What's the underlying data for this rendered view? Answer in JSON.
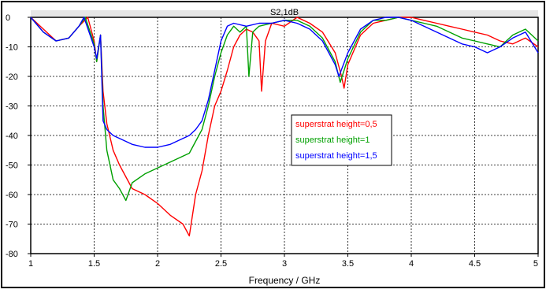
{
  "chart_data": {
    "type": "line",
    "title": "S2,1dB",
    "xlabel": "Frequency / GHz",
    "ylabel": "",
    "xlim": [
      1,
      5
    ],
    "ylim": [
      -80,
      0
    ],
    "grid": true,
    "legend_placement": "center-right",
    "x_ticks": [
      "1",
      "1.5",
      "2",
      "2.5",
      "3",
      "3.5",
      "4",
      "4.5",
      "5"
    ],
    "y_ticks": [
      "0",
      "-10",
      "-20",
      "-30",
      "-40",
      "-50",
      "-60",
      "-70",
      "-80"
    ],
    "series": [
      {
        "name": "superstrat height=0,5",
        "color": "#ff0000",
        "x": [
          1.0,
          1.1,
          1.2,
          1.3,
          1.38,
          1.45,
          1.5,
          1.52,
          1.55,
          1.57,
          1.6,
          1.65,
          1.7,
          1.8,
          1.9,
          2.0,
          2.1,
          2.2,
          2.25,
          2.3,
          2.35,
          2.4,
          2.45,
          2.5,
          2.55,
          2.6,
          2.65,
          2.7,
          2.75,
          2.8,
          2.82,
          2.85,
          2.9,
          3.0,
          3.1,
          3.2,
          3.3,
          3.4,
          3.45,
          3.47,
          3.5,
          3.6,
          3.7,
          3.8,
          3.9,
          4.0,
          4.1,
          4.2,
          4.3,
          4.4,
          4.5,
          4.6,
          4.7,
          4.8,
          4.9,
          5.0
        ],
        "y": [
          0,
          -4,
          -8,
          -7,
          -3,
          0,
          -8,
          -15,
          -6,
          -25,
          -36,
          -45,
          -50,
          -58,
          -60,
          -63,
          -67,
          -70,
          -74,
          -60,
          -52,
          -40,
          -30,
          -25,
          -18,
          -10,
          -6,
          -4,
          -5,
          -8,
          -25,
          -8,
          -2,
          -3,
          0,
          -2,
          -5,
          -12,
          -20,
          -24,
          -16,
          -6,
          -2,
          -1,
          0,
          0,
          -1,
          -2,
          -3,
          -4,
          -5,
          -6,
          -8,
          -9,
          -7,
          -10
        ]
      },
      {
        "name": "superstrat height=1",
        "color": "#00a000",
        "x": [
          1.0,
          1.1,
          1.2,
          1.3,
          1.38,
          1.43,
          1.5,
          1.52,
          1.55,
          1.57,
          1.6,
          1.65,
          1.7,
          1.75,
          1.8,
          1.9,
          2.0,
          2.1,
          2.2,
          2.25,
          2.3,
          2.35,
          2.4,
          2.45,
          2.5,
          2.55,
          2.6,
          2.65,
          2.7,
          2.72,
          2.75,
          2.8,
          2.9,
          3.0,
          3.1,
          3.2,
          3.3,
          3.4,
          3.44,
          3.5,
          3.6,
          3.7,
          3.8,
          3.9,
          4.0,
          4.1,
          4.2,
          4.3,
          4.4,
          4.5,
          4.6,
          4.7,
          4.8,
          4.9,
          5.0
        ],
        "y": [
          0,
          -5,
          -8,
          -7,
          -3,
          0,
          -9,
          -15,
          -6,
          -30,
          -45,
          -55,
          -58,
          -62,
          -56,
          -53,
          -51,
          -49,
          -47,
          -46,
          -42,
          -38,
          -30,
          -20,
          -12,
          -6,
          -3,
          -5,
          -3,
          -20,
          -5,
          -3,
          -2,
          -1,
          -1,
          -3,
          -7,
          -15,
          -22,
          -14,
          -5,
          -1,
          -1,
          0,
          -1,
          -2,
          -3,
          -5,
          -7,
          -8,
          -9,
          -10,
          -6,
          -4,
          -8
        ]
      },
      {
        "name": "superstrat height=1,5",
        "color": "#0000ff",
        "x": [
          1.0,
          1.1,
          1.2,
          1.3,
          1.38,
          1.42,
          1.5,
          1.52,
          1.55,
          1.57,
          1.6,
          1.65,
          1.7,
          1.8,
          1.9,
          2.0,
          2.1,
          2.2,
          2.25,
          2.3,
          2.35,
          2.4,
          2.45,
          2.5,
          2.55,
          2.6,
          2.7,
          2.8,
          2.9,
          3.0,
          3.1,
          3.2,
          3.3,
          3.4,
          3.43,
          3.5,
          3.6,
          3.7,
          3.8,
          3.9,
          4.0,
          4.1,
          4.2,
          4.3,
          4.4,
          4.5,
          4.6,
          4.7,
          4.8,
          4.9,
          5.0
        ],
        "y": [
          0,
          -5,
          -8,
          -7,
          -3,
          0,
          -10,
          -14,
          -6,
          -35,
          -38,
          -40,
          -41,
          -43,
          -44,
          -44,
          -43,
          -41,
          -40,
          -38,
          -35,
          -28,
          -18,
          -8,
          -3,
          -2,
          -3,
          -2,
          -2,
          -1,
          -2,
          -4,
          -8,
          -16,
          -20,
          -12,
          -4,
          -1,
          0,
          0,
          -1,
          -3,
          -5,
          -7,
          -9,
          -10,
          -12,
          -10,
          -7,
          -5,
          -12
        ]
      }
    ]
  }
}
